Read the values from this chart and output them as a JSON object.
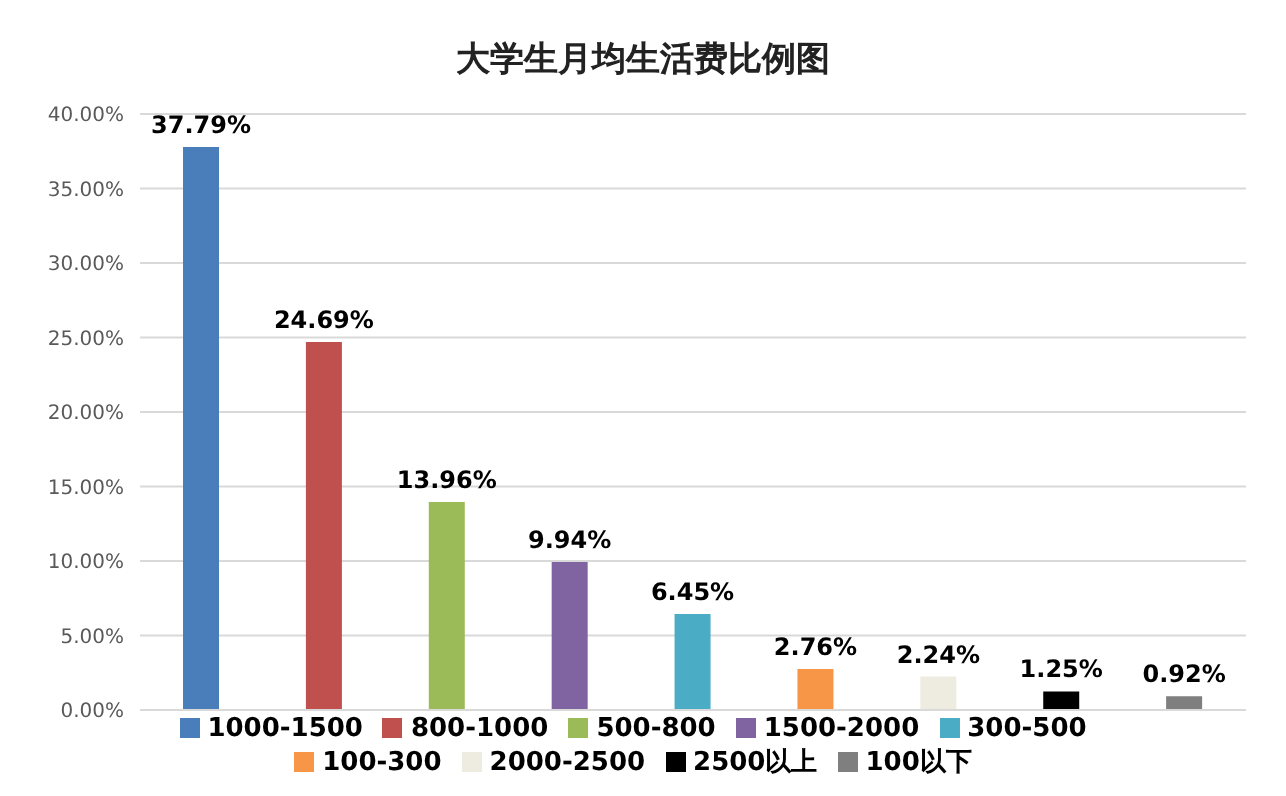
{
  "chart_data": {
    "type": "bar",
    "title": "大学生月均生活费比例图",
    "categories": [
      null,
      null,
      null,
      null,
      null,
      null,
      null,
      null,
      null
    ],
    "series": [
      {
        "name": "1000-1500",
        "color": "#4a7ebb",
        "values": [
          37.79,
          null,
          null,
          null,
          null,
          null,
          null,
          null,
          null
        ],
        "value_labels": [
          "37.79%",
          null,
          null,
          null,
          null,
          null,
          null,
          null,
          null
        ]
      },
      {
        "name": "800-1000",
        "color": "#c0504d",
        "values": [
          null,
          24.69,
          null,
          null,
          null,
          null,
          null,
          null,
          null
        ],
        "value_labels": [
          null,
          "24.69%",
          null,
          null,
          null,
          null,
          null,
          null,
          null
        ]
      },
      {
        "name": "500-800",
        "color": "#9bbb59",
        "values": [
          null,
          null,
          13.96,
          null,
          null,
          null,
          null,
          null,
          null
        ],
        "value_labels": [
          null,
          null,
          "13.96%",
          null,
          null,
          null,
          null,
          null,
          null
        ]
      },
      {
        "name": "1500-2000",
        "color": "#8064a2",
        "values": [
          null,
          null,
          null,
          9.94,
          null,
          null,
          null,
          null,
          null
        ],
        "value_labels": [
          null,
          null,
          null,
          "9.94%",
          null,
          null,
          null,
          null,
          null
        ]
      },
      {
        "name": "300-500",
        "color": "#4bacc6",
        "values": [
          null,
          null,
          null,
          null,
          6.45,
          null,
          null,
          null,
          null
        ],
        "value_labels": [
          null,
          null,
          null,
          null,
          "6.45%",
          null,
          null,
          null,
          null
        ]
      },
      {
        "name": "100-300",
        "color": "#f79646",
        "values": [
          null,
          null,
          null,
          null,
          null,
          2.76,
          null,
          null,
          null
        ],
        "value_labels": [
          null,
          null,
          null,
          null,
          null,
          "2.76%",
          null,
          null,
          null
        ]
      },
      {
        "name": "2000-2500",
        "color": "#eeece1",
        "values": [
          null,
          null,
          null,
          null,
          null,
          null,
          2.24,
          null,
          null
        ],
        "value_labels": [
          null,
          null,
          null,
          null,
          null,
          null,
          "2.24%",
          null,
          null
        ]
      },
      {
        "name": "2500以上",
        "color": "#000000",
        "values": [
          null,
          null,
          null,
          null,
          null,
          null,
          null,
          1.25,
          null
        ],
        "value_labels": [
          null,
          null,
          null,
          null,
          null,
          null,
          null,
          "1.25%",
          null
        ]
      },
      {
        "name": "100以下",
        "color": "#7f7f7f",
        "values": [
          null,
          null,
          null,
          null,
          null,
          null,
          null,
          null,
          0.92
        ],
        "value_labels": [
          null,
          null,
          null,
          null,
          null,
          null,
          null,
          null,
          "0.92%"
        ]
      }
    ],
    "ylim": [
      0,
      40
    ],
    "yticks": [
      {
        "value": 0,
        "label": "0.00%"
      },
      {
        "value": 5,
        "label": "5.00%"
      },
      {
        "value": 10,
        "label": "10.00%"
      },
      {
        "value": 15,
        "label": "15.00%"
      },
      {
        "value": 20,
        "label": "20.00%"
      },
      {
        "value": 25,
        "label": "25.00%"
      },
      {
        "value": 30,
        "label": "30.00%"
      },
      {
        "value": 35,
        "label": "35.00%"
      },
      {
        "value": 40,
        "label": "40.00%"
      }
    ],
    "grid": "y",
    "legend": "bottom",
    "tick_labels": "y"
  }
}
